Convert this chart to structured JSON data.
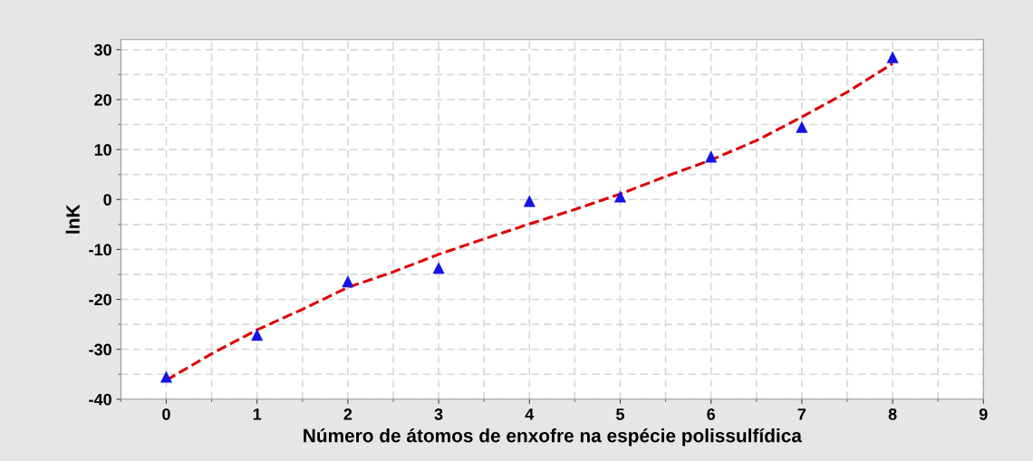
{
  "chart_data": {
    "type": "scatter",
    "xlabel": "Número de átomos de enxofre na espécie polissulfídica",
    "ylabel": "lnK",
    "xlim": [
      -0.5,
      9
    ],
    "xticks": [
      0,
      1,
      2,
      3,
      4,
      5,
      6,
      7,
      8,
      9
    ],
    "ylim": [
      -40,
      32
    ],
    "yticks": [
      -40,
      -30,
      -20,
      -10,
      0,
      10,
      20,
      30
    ],
    "grid": true,
    "legend": false,
    "series": [
      {
        "color": "#1414e6",
        "marker": "triangle",
        "x": [
          0,
          1,
          2,
          3,
          4,
          5,
          6,
          7,
          8
        ],
        "values": [
          -35.5,
          -27.1,
          -16.4,
          -13.7,
          -0.3,
          0.6,
          8.6,
          14.5,
          28.5
        ]
      },
      {
        "type": "line",
        "color": "#dd0000",
        "line_style": "dashed",
        "marker": "none",
        "x": [
          0,
          0.5,
          1,
          1.5,
          2,
          2.5,
          3,
          3.5,
          4,
          4.5,
          5,
          5.5,
          6,
          6.5,
          7,
          7.5,
          8
        ],
        "values": [
          -36.2,
          -30.9,
          -26.1,
          -22.0,
          -17.6,
          -14.5,
          -11.0,
          -7.9,
          -4.9,
          -2.0,
          1.1,
          4.6,
          7.9,
          11.8,
          16.5,
          21.5,
          27.2
        ]
      }
    ]
  }
}
